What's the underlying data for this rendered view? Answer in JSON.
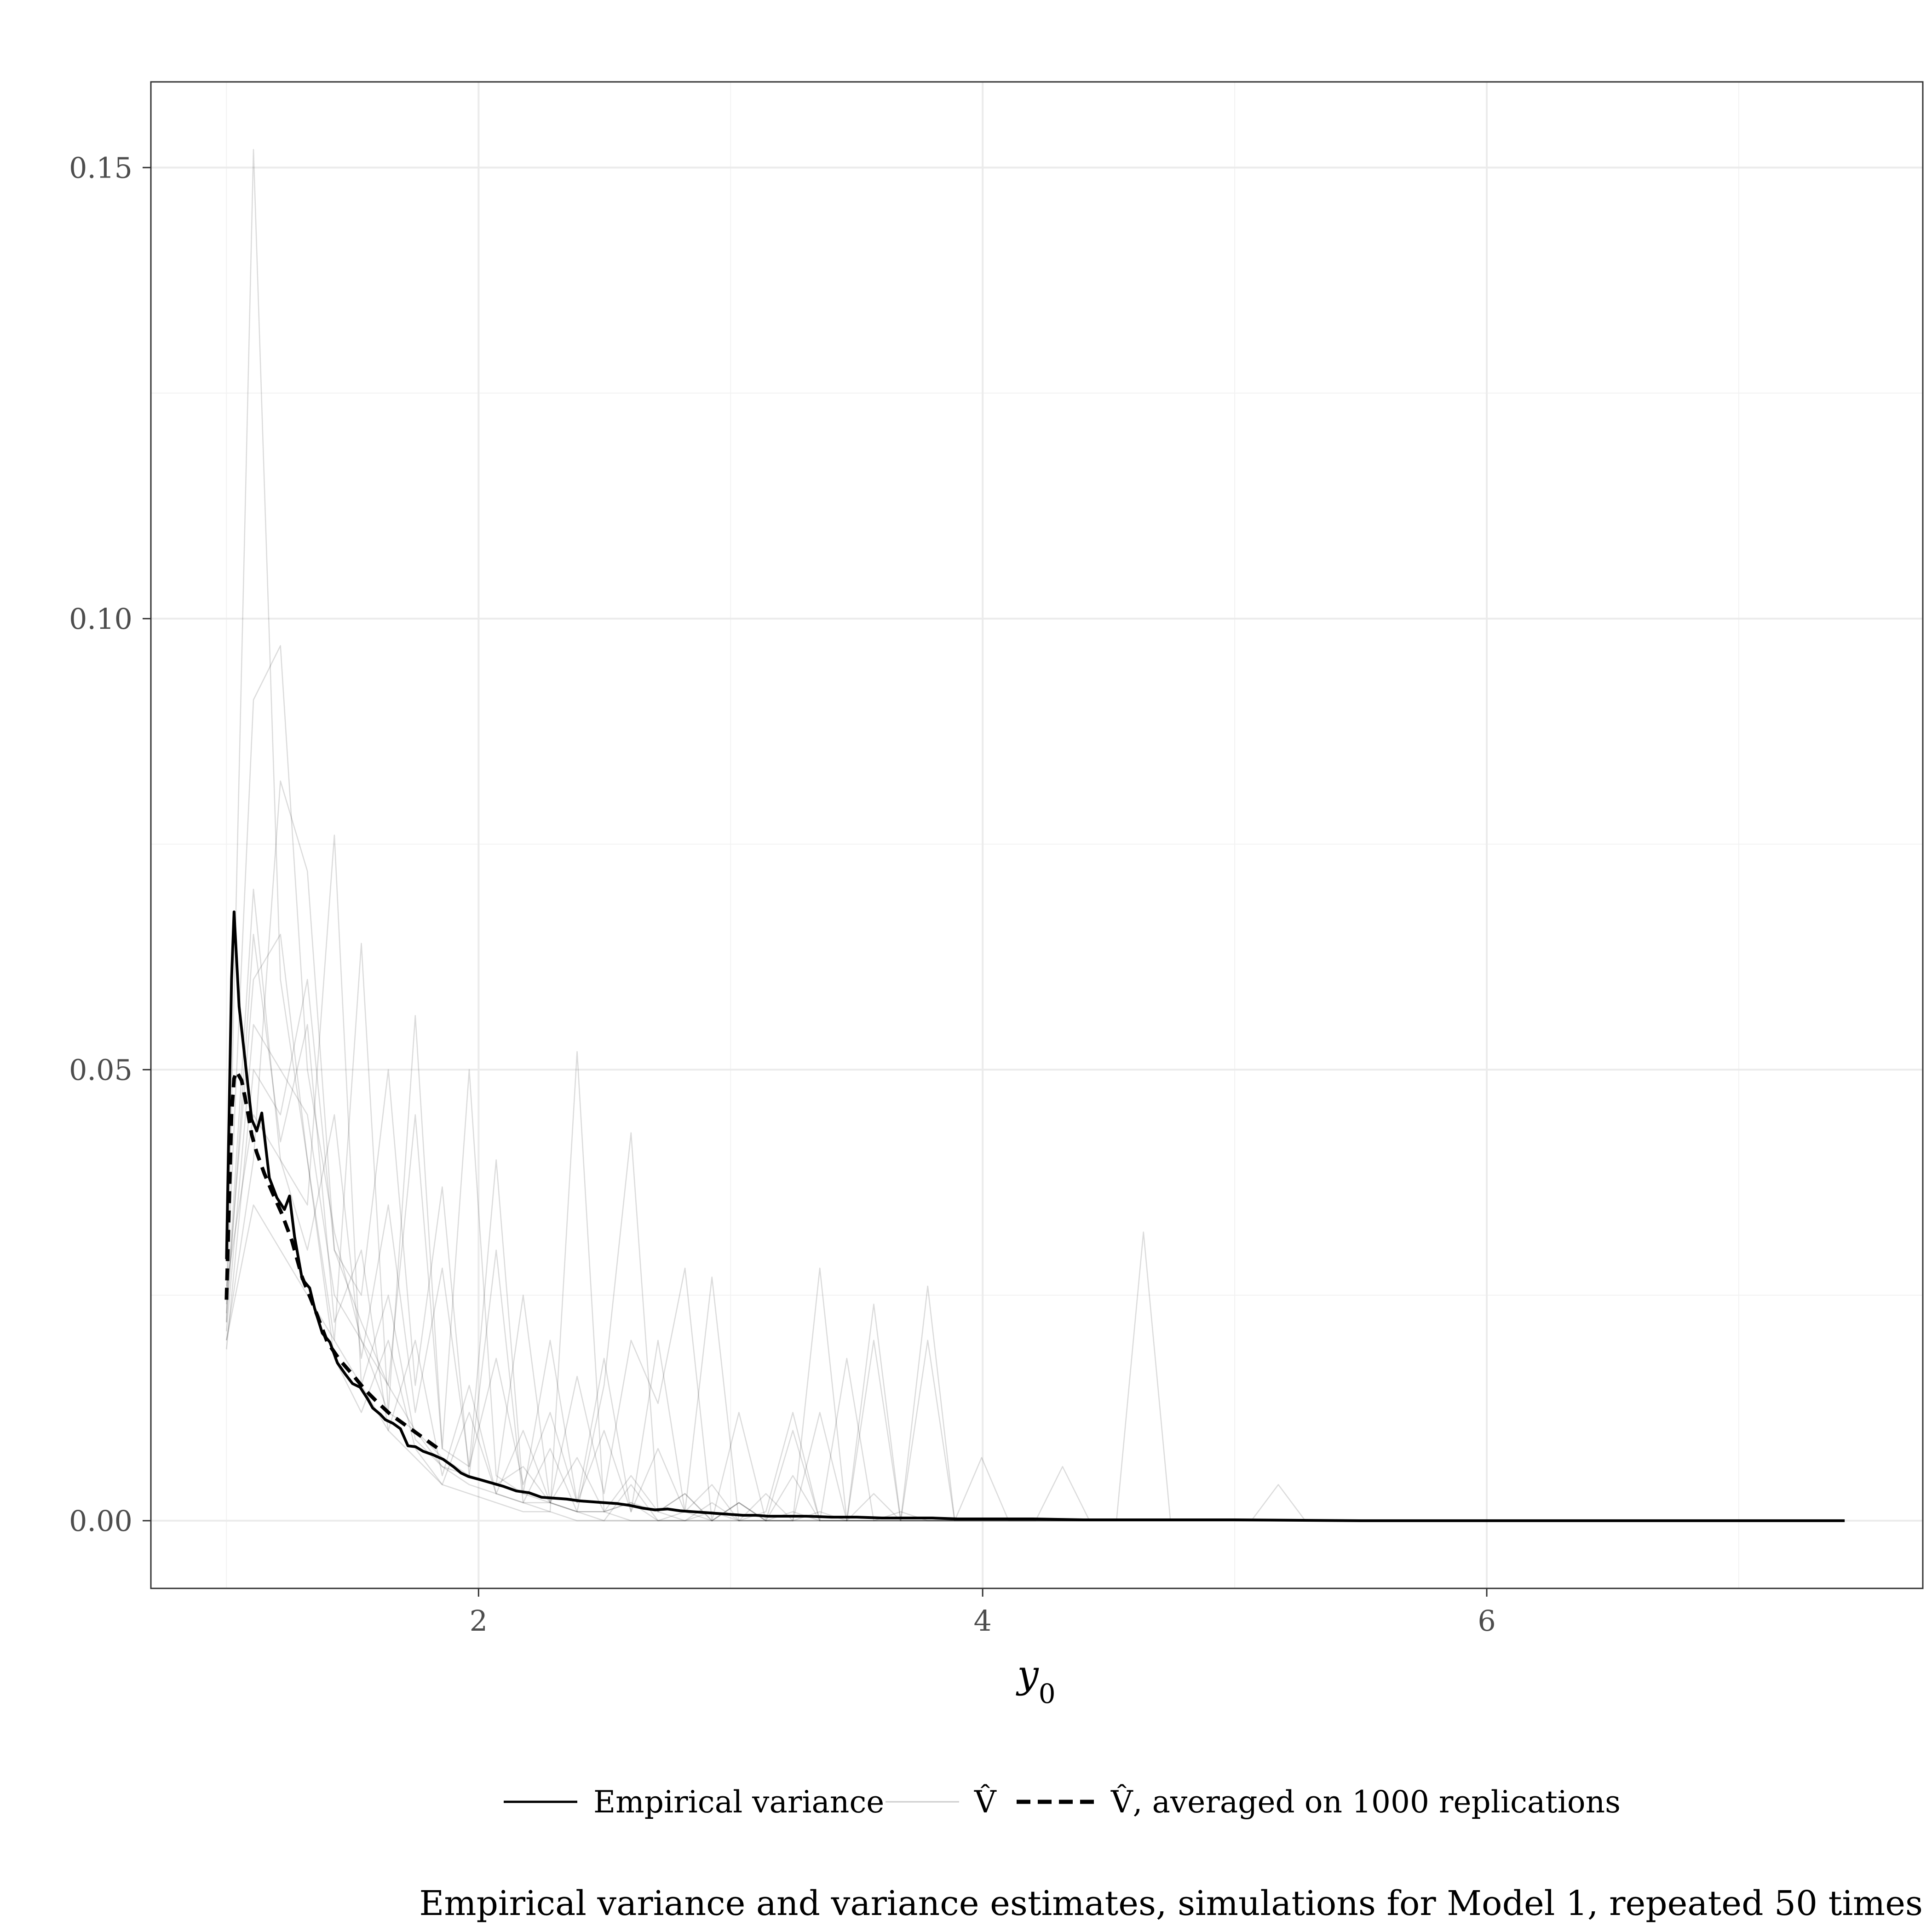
{
  "chart_data": {
    "type": "line",
    "title": "Empirical variance and variance estimates, simulations for Model 1, repeated 50 times",
    "xlabel": "y0",
    "xlabel_main": "y",
    "xlabel_sub": "0",
    "ylabel": "",
    "xlim": [
      0.7,
      7.73
    ],
    "ylim": [
      -0.0075,
      0.1595
    ],
    "x_ticks": [
      2,
      4,
      6
    ],
    "x_tick_labels": [
      "2",
      "4",
      "6"
    ],
    "y_ticks": [
      0,
      0.05,
      0.1,
      0.15
    ],
    "y_tick_labels": [
      "0.00",
      "0.05",
      "0.10",
      "0.15"
    ],
    "grid": true,
    "legend_position": "bottom",
    "legend": [
      {
        "label": "Empirical variance",
        "style": "solid",
        "color": "#000000"
      },
      {
        "label": "V̂",
        "style": "thin",
        "color": "#cccccc"
      },
      {
        "label": "V̂, averaged on 1000 replications",
        "style": "dashed",
        "color": "#000000"
      }
    ],
    "series": [
      {
        "name": "Empirical variance",
        "style": "solid",
        "x": [
          1.0,
          1.02,
          1.03,
          1.05,
          1.08,
          1.1,
          1.12,
          1.14,
          1.17,
          1.2,
          1.23,
          1.25,
          1.27,
          1.3,
          1.33,
          1.35,
          1.38,
          1.41,
          1.44,
          1.47,
          1.5,
          1.53,
          1.56,
          1.58,
          1.61,
          1.63,
          1.66,
          1.69,
          1.72,
          1.75,
          1.78,
          1.82,
          1.86,
          1.9,
          1.93,
          1.96,
          2.0,
          2.05,
          2.1,
          2.15,
          2.2,
          2.25,
          2.3,
          2.35,
          2.4,
          2.45,
          2.5,
          2.55,
          2.6,
          2.65,
          2.7,
          2.75,
          2.8,
          2.85,
          2.9,
          2.95,
          3.0,
          3.05,
          3.1,
          3.15,
          3.2,
          3.3,
          3.4,
          3.5,
          3.6,
          3.7,
          3.8,
          3.9,
          4.0,
          4.2,
          4.4,
          4.6,
          4.8,
          5.0,
          5.5,
          6.0,
          6.5,
          7.0,
          7.42
        ],
        "y": [
          0.029,
          0.06,
          0.0675,
          0.057,
          0.0495,
          0.0445,
          0.0432,
          0.0452,
          0.038,
          0.0358,
          0.0345,
          0.036,
          0.0315,
          0.0268,
          0.0258,
          0.0235,
          0.0208,
          0.0198,
          0.0175,
          0.0163,
          0.0152,
          0.0148,
          0.0135,
          0.0125,
          0.0118,
          0.0112,
          0.0108,
          0.0102,
          0.0083,
          0.0082,
          0.0077,
          0.0073,
          0.0068,
          0.006,
          0.0053,
          0.0049,
          0.0046,
          0.0042,
          0.0038,
          0.0033,
          0.0031,
          0.0026,
          0.0025,
          0.0024,
          0.0022,
          0.0021,
          0.002,
          0.0019,
          0.0017,
          0.0014,
          0.0012,
          0.0013,
          0.0011,
          0.001,
          0.0009,
          0.0008,
          0.0007,
          0.0006,
          0.0006,
          0.0005,
          0.0005,
          0.0005,
          0.0004,
          0.0004,
          0.0003,
          0.0003,
          0.0003,
          0.0002,
          0.0002,
          0.0002,
          0.0001,
          0.0001,
          0.0001,
          0.0001,
          0.0,
          0.0,
          0.0,
          0.0,
          0.0
        ]
      },
      {
        "name": "V̂, averaged on 1000 replications",
        "style": "dashed",
        "x": [
          1.0,
          1.02,
          1.03,
          1.04,
          1.06,
          1.08,
          1.1,
          1.12,
          1.15,
          1.18,
          1.22,
          1.26,
          1.3,
          1.35,
          1.4,
          1.45,
          1.5,
          1.55,
          1.6,
          1.65,
          1.7,
          1.75,
          1.8,
          1.85
        ],
        "y": [
          0.0245,
          0.045,
          0.049,
          0.0498,
          0.0488,
          0.046,
          0.0428,
          0.0408,
          0.0385,
          0.0365,
          0.034,
          0.031,
          0.027,
          0.0235,
          0.0198,
          0.0178,
          0.0162,
          0.0145,
          0.0131,
          0.0118,
          0.0108,
          0.0098,
          0.0088,
          0.0078
        ]
      }
    ],
    "replications": {
      "name": "V̂",
      "count": 50,
      "color": "#cccccc",
      "x": [
        1.0,
        1.107,
        1.214,
        1.321,
        1.428,
        1.535,
        1.642,
        1.749,
        1.856,
        1.963,
        2.07,
        2.177,
        2.284,
        2.391,
        2.498,
        2.605,
        2.712,
        2.819,
        2.926,
        3.033,
        3.14,
        3.247,
        3.354,
        3.461,
        3.568,
        3.675,
        3.782,
        3.889,
        3.996,
        4.103,
        4.21,
        4.317,
        4.424,
        4.531,
        4.638,
        4.745,
        4.852,
        4.959,
        5.066,
        5.173,
        5.28
      ],
      "y": [
        [
          0.022,
          0.152,
          0.06,
          0.04,
          0.018,
          0.012,
          0.02,
          0.008,
          0.004,
          0.012,
          0.003,
          0.002,
          0.008,
          0.001,
          0.0,
          0.004,
          0.0,
          0.001,
          0.0,
          0.002,
          0.0,
          0.0,
          0.001,
          0.0,
          0.0,
          0.001,
          0.0,
          0.0,
          0.0,
          0.0,
          0.0,
          0.0,
          0.0,
          0.0,
          0.0,
          0.0,
          0.0,
          0.0,
          0.0,
          0.0,
          0.0
        ],
        [
          0.025,
          0.091,
          0.097,
          0.05,
          0.032,
          0.02,
          0.012,
          0.01,
          0.006,
          0.004,
          0.003,
          0.002,
          0.002,
          0.001,
          0.001,
          0.0,
          0.0,
          0.0,
          0.0,
          0.0,
          0.0,
          0.0,
          0.0,
          0.0,
          0.0,
          0.0,
          0.0,
          0.0,
          0.0,
          0.0,
          0.0,
          0.0,
          0.0,
          0.0,
          0.0,
          0.0,
          0.0,
          0.0,
          0.0,
          0.0,
          0.0
        ],
        [
          0.02,
          0.04,
          0.082,
          0.072,
          0.03,
          0.022,
          0.015,
          0.01,
          0.007,
          0.005,
          0.004,
          0.006,
          0.002,
          0.001,
          0.001,
          0.002,
          0.0,
          0.0,
          0.001,
          0.0,
          0.0,
          0.0,
          0.0,
          0.0,
          0.0,
          0.0,
          0.0,
          0.0,
          0.0,
          0.0,
          0.0,
          0.0,
          0.0,
          0.0,
          0.0,
          0.0,
          0.0,
          0.0,
          0.0,
          0.0,
          0.0
        ],
        [
          0.023,
          0.07,
          0.04,
          0.035,
          0.076,
          0.015,
          0.025,
          0.009,
          0.006,
          0.005,
          0.03,
          0.002,
          0.001,
          0.052,
          0.001,
          0.002,
          0.001,
          0.0,
          0.002,
          0.0,
          0.0,
          0.001,
          0.0,
          0.0,
          0.0,
          0.0,
          0.0,
          0.0,
          0.0,
          0.0,
          0.0,
          0.0,
          0.0,
          0.0,
          0.0,
          0.0,
          0.0,
          0.0,
          0.0,
          0.0,
          0.0
        ],
        [
          0.024,
          0.06,
          0.065,
          0.04,
          0.02,
          0.064,
          0.012,
          0.056,
          0.008,
          0.006,
          0.04,
          0.003,
          0.002,
          0.001,
          0.015,
          0.043,
          0.001,
          0.003,
          0.0,
          0.002,
          0.0,
          0.0,
          0.028,
          0.0,
          0.024,
          0.0,
          0.026,
          0.0,
          0.0,
          0.0,
          0.0,
          0.0,
          0.0,
          0.0,
          0.0,
          0.0,
          0.0,
          0.0,
          0.0,
          0.0,
          0.0
        ],
        [
          0.019,
          0.05,
          0.045,
          0.06,
          0.03,
          0.025,
          0.05,
          0.015,
          0.037,
          0.005,
          0.004,
          0.025,
          0.002,
          0.016,
          0.003,
          0.02,
          0.013,
          0.028,
          0.0,
          0.012,
          0.0,
          0.01,
          0.0,
          0.0,
          0.02,
          0.0,
          0.0,
          0.0,
          0.0,
          0.0,
          0.0,
          0.0,
          0.0,
          0.0,
          0.0,
          0.0,
          0.0,
          0.0,
          0.0,
          0.0,
          0.0
        ],
        [
          0.021,
          0.055,
          0.05,
          0.045,
          0.025,
          0.02,
          0.015,
          0.045,
          0.008,
          0.05,
          0.005,
          0.003,
          0.02,
          0.002,
          0.018,
          0.001,
          0.02,
          0.001,
          0.027,
          0.0,
          0.001,
          0.012,
          0.0,
          0.018,
          0.0,
          0.0,
          0.02,
          0.0,
          0.007,
          0.0,
          0.0,
          0.0,
          0.0,
          0.0,
          0.0,
          0.0,
          0.0,
          0.0,
          0.0,
          0.0,
          0.0
        ],
        [
          0.026,
          0.045,
          0.04,
          0.03,
          0.045,
          0.018,
          0.035,
          0.012,
          0.028,
          0.006,
          0.018,
          0.004,
          0.012,
          0.002,
          0.01,
          0.001,
          0.008,
          0.001,
          0.004,
          0.0,
          0.003,
          0.0,
          0.012,
          0.0,
          0.003,
          0.0,
          0.0,
          0.0,
          0.0,
          0.0,
          0.0,
          0.0,
          0.0,
          0.0,
          0.0,
          0.0,
          0.0,
          0.0,
          0.0,
          0.0,
          0.0
        ],
        [
          0.022,
          0.065,
          0.042,
          0.055,
          0.022,
          0.03,
          0.01,
          0.02,
          0.005,
          0.015,
          0.003,
          0.01,
          0.002,
          0.007,
          0.001,
          0.005,
          0.001,
          0.003,
          0.0,
          0.002,
          0.0,
          0.005,
          0.0,
          0.0,
          0.0,
          0.0,
          0.0,
          0.0,
          0.0,
          0.0,
          0.0,
          0.006,
          0.0,
          0.0,
          0.032,
          0.0,
          0.0,
          0.0,
          0.0,
          0.004,
          0.0
        ],
        [
          0.02,
          0.035,
          0.03,
          0.025,
          0.02,
          0.015,
          0.01,
          0.007,
          0.004,
          0.003,
          0.002,
          0.001,
          0.001,
          0.0,
          0.0,
          0.0,
          0.0,
          0.0,
          0.0,
          0.0,
          0.0,
          0.0,
          0.0,
          0.0,
          0.0,
          0.0,
          0.0,
          0.0,
          0.0,
          0.0,
          0.0,
          0.0,
          0.0,
          0.0,
          0.0,
          0.0,
          0.0,
          0.0,
          0.0,
          0.0,
          0.0
        ]
      ]
    }
  }
}
